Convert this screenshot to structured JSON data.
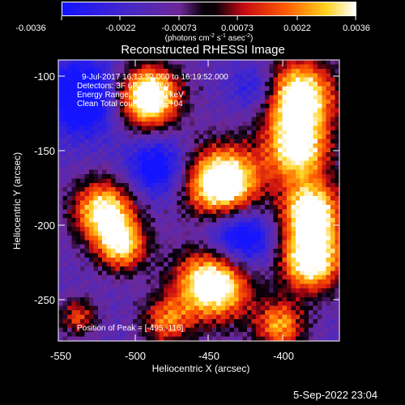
{
  "colorbar": {
    "ticks": [
      "-0.0036",
      "-0.0022",
      "-0.00073",
      "0.00073",
      "0.0022",
      "0.0036"
    ],
    "unit_prefix": "(photons cm",
    "unit_exp1": "-2",
    "unit_mid": " s",
    "unit_exp2": "-1",
    "unit_mid2": " asec",
    "unit_exp3": "-2",
    "unit_suffix": ")"
  },
  "plot": {
    "title": "Reconstructed RHESSI Image",
    "xlabel": "Heliocentric X (arcsec)",
    "ylabel": "Heliocentric Y (arcsec)",
    "xticks": [
      "-550",
      "-500",
      "-450",
      "-400"
    ],
    "yticks": [
      "-100",
      "-150",
      "-200",
      "-250"
    ],
    "annotations": {
      "time_range": "9-Jul-2017 16:13:52.000 to 16:19:52.000",
      "detectors": "Detectors: 3F 6F 8F, Att 0",
      "energy": "Energy Range: 6.0 - 25.0 keV",
      "clean": "Clean     Total counts: 1.32E+04",
      "peak": "Position of Peak = [-495,-116]"
    }
  },
  "footer": {
    "date": "5-Sep-2022 23:04"
  },
  "colors": {
    "background": "#000000",
    "text": "#ffffff"
  }
}
